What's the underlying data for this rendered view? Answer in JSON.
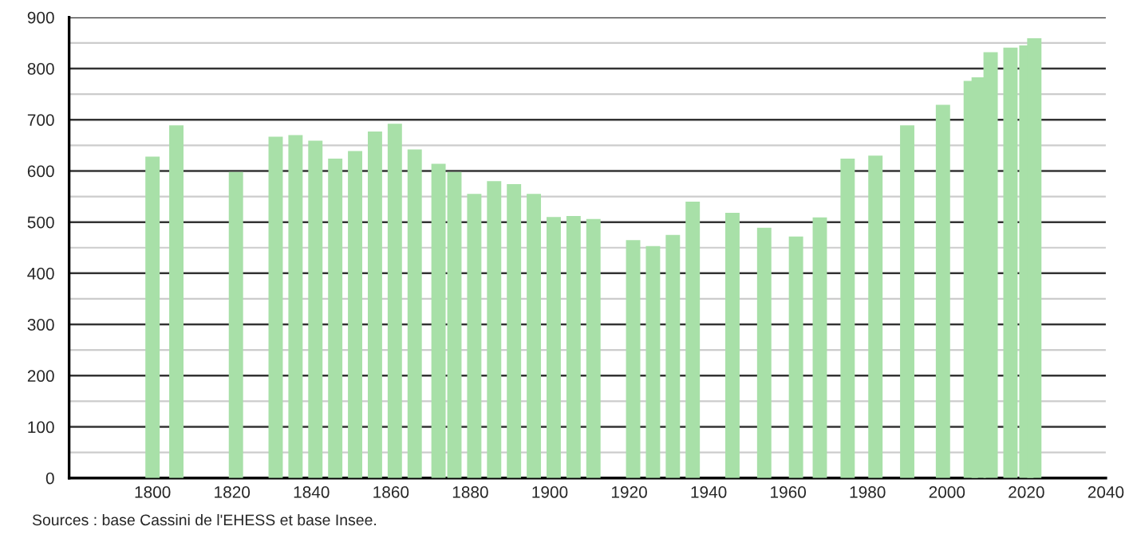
{
  "chart_data": {
    "type": "bar",
    "x": [
      1800,
      1806,
      1821,
      1831,
      1836,
      1841,
      1846,
      1851,
      1856,
      1861,
      1866,
      1872,
      1876,
      1881,
      1886,
      1891,
      1896,
      1901,
      1906,
      1911,
      1921,
      1926,
      1931,
      1936,
      1946,
      1954,
      1962,
      1968,
      1975,
      1982,
      1990,
      1999,
      2006,
      2008,
      2011,
      2016,
      2020,
      2022
    ],
    "values": [
      628,
      689,
      598,
      667,
      670,
      659,
      624,
      639,
      677,
      692,
      642,
      614,
      598,
      555,
      580,
      574,
      555,
      510,
      512,
      506,
      465,
      453,
      475,
      540,
      518,
      489,
      472,
      509,
      624,
      630,
      689,
      729,
      776,
      783,
      832,
      841,
      845,
      859
    ],
    "color": "#a8e0a8",
    "xlim": [
      1779,
      2040
    ],
    "xticks": [
      1800,
      1820,
      1840,
      1860,
      1880,
      1900,
      1920,
      1940,
      1960,
      1980,
      2000,
      2020,
      2040
    ],
    "ylim": [
      0,
      900
    ],
    "yticks": [
      0,
      100,
      200,
      300,
      400,
      500,
      600,
      700,
      800,
      900
    ],
    "grid": "y",
    "annotations": [
      "Sources : base Cassini de l'EHESS et base Insee."
    ]
  }
}
